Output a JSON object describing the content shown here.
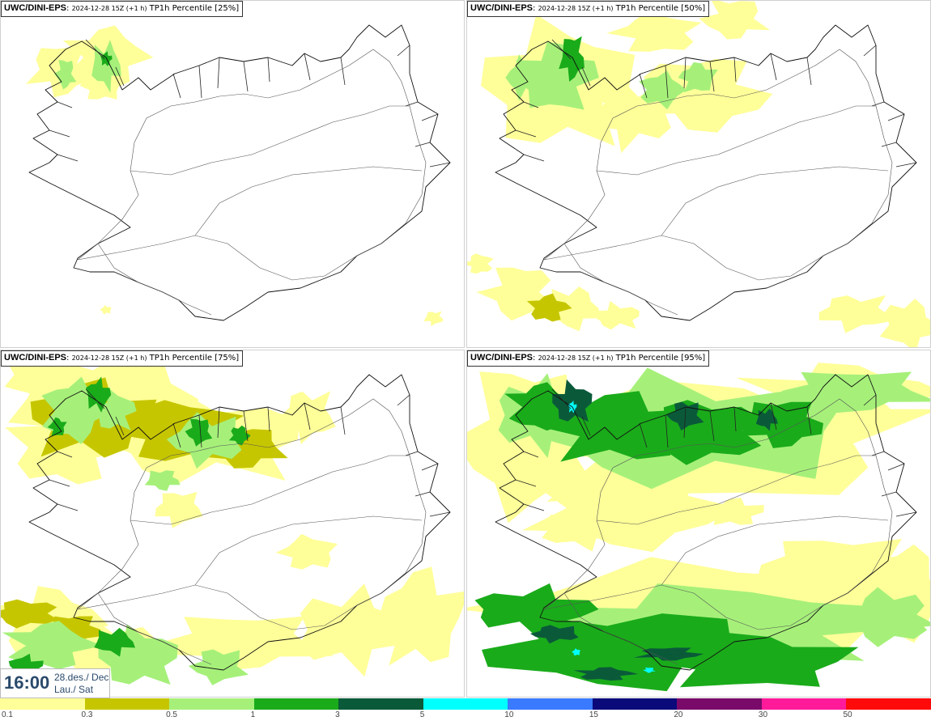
{
  "panels": [
    {
      "model": "UWC/DINI-EPS",
      "date": "2024-12-28 15Z (+1 h)",
      "param": "TP1h Percentile [25%]"
    },
    {
      "model": "UWC/DINI-EPS",
      "date": "2024-12-28 15Z (+1 h)",
      "param": "TP1h Percentile [50%]"
    },
    {
      "model": "UWC/DINI-EPS",
      "date": "2024-12-28 15Z (+1 h)",
      "param": "TP1h Percentile [75%]"
    },
    {
      "model": "UWC/DINI-EPS",
      "date": "2024-12-28 15Z (+1 h)",
      "param": "TP1h Percentile [95%]"
    }
  ],
  "valid_time": {
    "time": "16:00",
    "date_line1": "28.des./ Dec",
    "date_line2": "Lau./ Sat"
  },
  "colorbar": {
    "labels": [
      "0.1",
      "0.3",
      "0.5",
      "1",
      "3",
      "5",
      "10",
      "15",
      "20",
      "30",
      "50"
    ],
    "colors": [
      "#ffff99",
      "#c6c600",
      "#a6f07a",
      "#1aab1a",
      "#0a5a3a",
      "#00ffff",
      "#3a7aff",
      "#0a0a7a",
      "#7a0a6a",
      "#ff1a9a",
      "#ff0a0a"
    ]
  }
}
